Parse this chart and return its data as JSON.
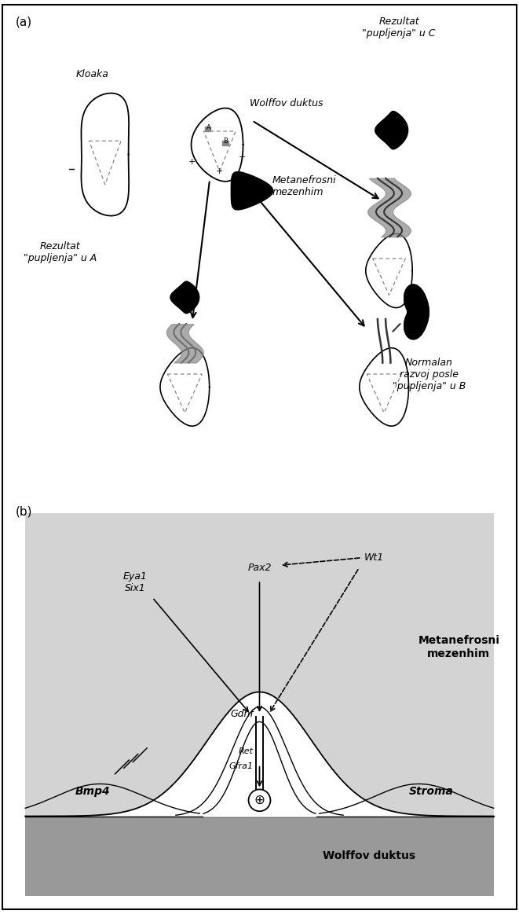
{
  "fig_width": 6.61,
  "fig_height": 11.63,
  "bg_color": "#ffffff",
  "border_color": "#000000",
  "panel_a_label": "(a)",
  "panel_b_label": "(b)",
  "panel_b_bg": "#d3d3d3",
  "wolffov_duktus_bg": "#999999",
  "texts": {
    "kloaka": "Kloaka",
    "wolffov": "Wolffov duktus",
    "metanefrosni": "Metanefrosni\nmezenhim",
    "rezultat_c": "Rezultat\n\"pupljenja\" u C",
    "rezultat_a": "Rezultat\n\"pupljenja\" u A",
    "normalan": "Normalan\nrazvoj posle\n\"pupljenja\" u B",
    "eya1_six1": "Eya1\nSix1",
    "pax2": "Pax2",
    "wt1": "Wt1",
    "gdnf": "Gdnf",
    "ret": "Ret",
    "gfra1": "Gfra1",
    "bmp4": "Bmp4",
    "stroma": "Stroma",
    "metanefrosni_b": "Metanefrosni\nmezenhim",
    "wolffov_b": "Wolffov duktus"
  },
  "gray_dark": "#333333",
  "gray_mid": "#666666"
}
